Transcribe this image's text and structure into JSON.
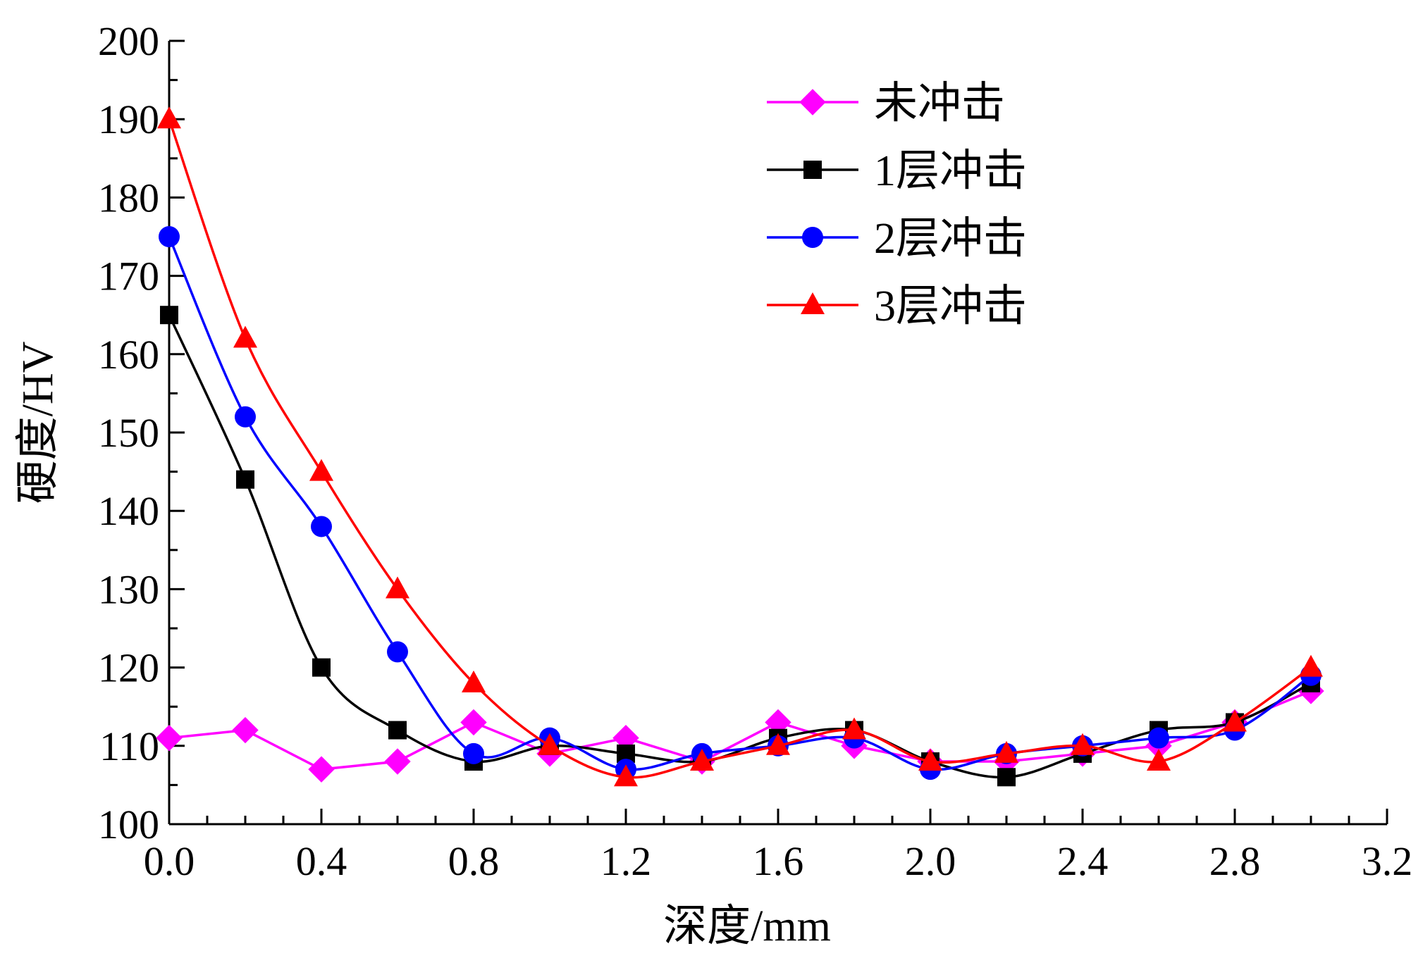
{
  "chart_data": {
    "type": "line",
    "title": "",
    "xlabel": "深度/mm",
    "ylabel": "硬度/HV",
    "xlim": [
      0.0,
      3.2
    ],
    "ylim": [
      100,
      200
    ],
    "x_ticks": [
      "0.0",
      "0.4",
      "0.8",
      "1.2",
      "1.6",
      "2.0",
      "2.4",
      "2.8",
      "3.2"
    ],
    "y_ticks": [
      "100",
      "110",
      "120",
      "130",
      "140",
      "150",
      "160",
      "170",
      "180",
      "190",
      "200"
    ],
    "grid": false,
    "legend_position": "top-right",
    "x": [
      0.0,
      0.2,
      0.4,
      0.6,
      0.8,
      1.0,
      1.2,
      1.4,
      1.6,
      1.8,
      2.0,
      2.2,
      2.4,
      2.6,
      2.8,
      3.0
    ],
    "series": [
      {
        "name": "未冲击",
        "marker": "diamond",
        "color": "#ff00ff",
        "values": [
          111,
          112,
          107,
          108,
          113,
          109,
          111,
          108,
          113,
          110,
          108,
          108,
          109,
          110,
          113,
          117
        ]
      },
      {
        "name": "1层冲击",
        "marker": "square",
        "color": "#000000",
        "values": [
          165,
          144,
          120,
          112,
          108,
          110,
          109,
          108,
          111,
          112,
          108,
          106,
          109,
          112,
          113,
          118
        ]
      },
      {
        "name": "2层冲击",
        "marker": "circle",
        "color": "#0000ff",
        "values": [
          175,
          152,
          138,
          122,
          109,
          111,
          107,
          109,
          110,
          111,
          107,
          109,
          110,
          111,
          112,
          119
        ]
      },
      {
        "name": "3层冲击",
        "marker": "triangle",
        "color": "#ff0000",
        "values": [
          190,
          162,
          145,
          130,
          118,
          110,
          106,
          108,
          110,
          112,
          108,
          109,
          110,
          108,
          113,
          120
        ]
      }
    ]
  }
}
